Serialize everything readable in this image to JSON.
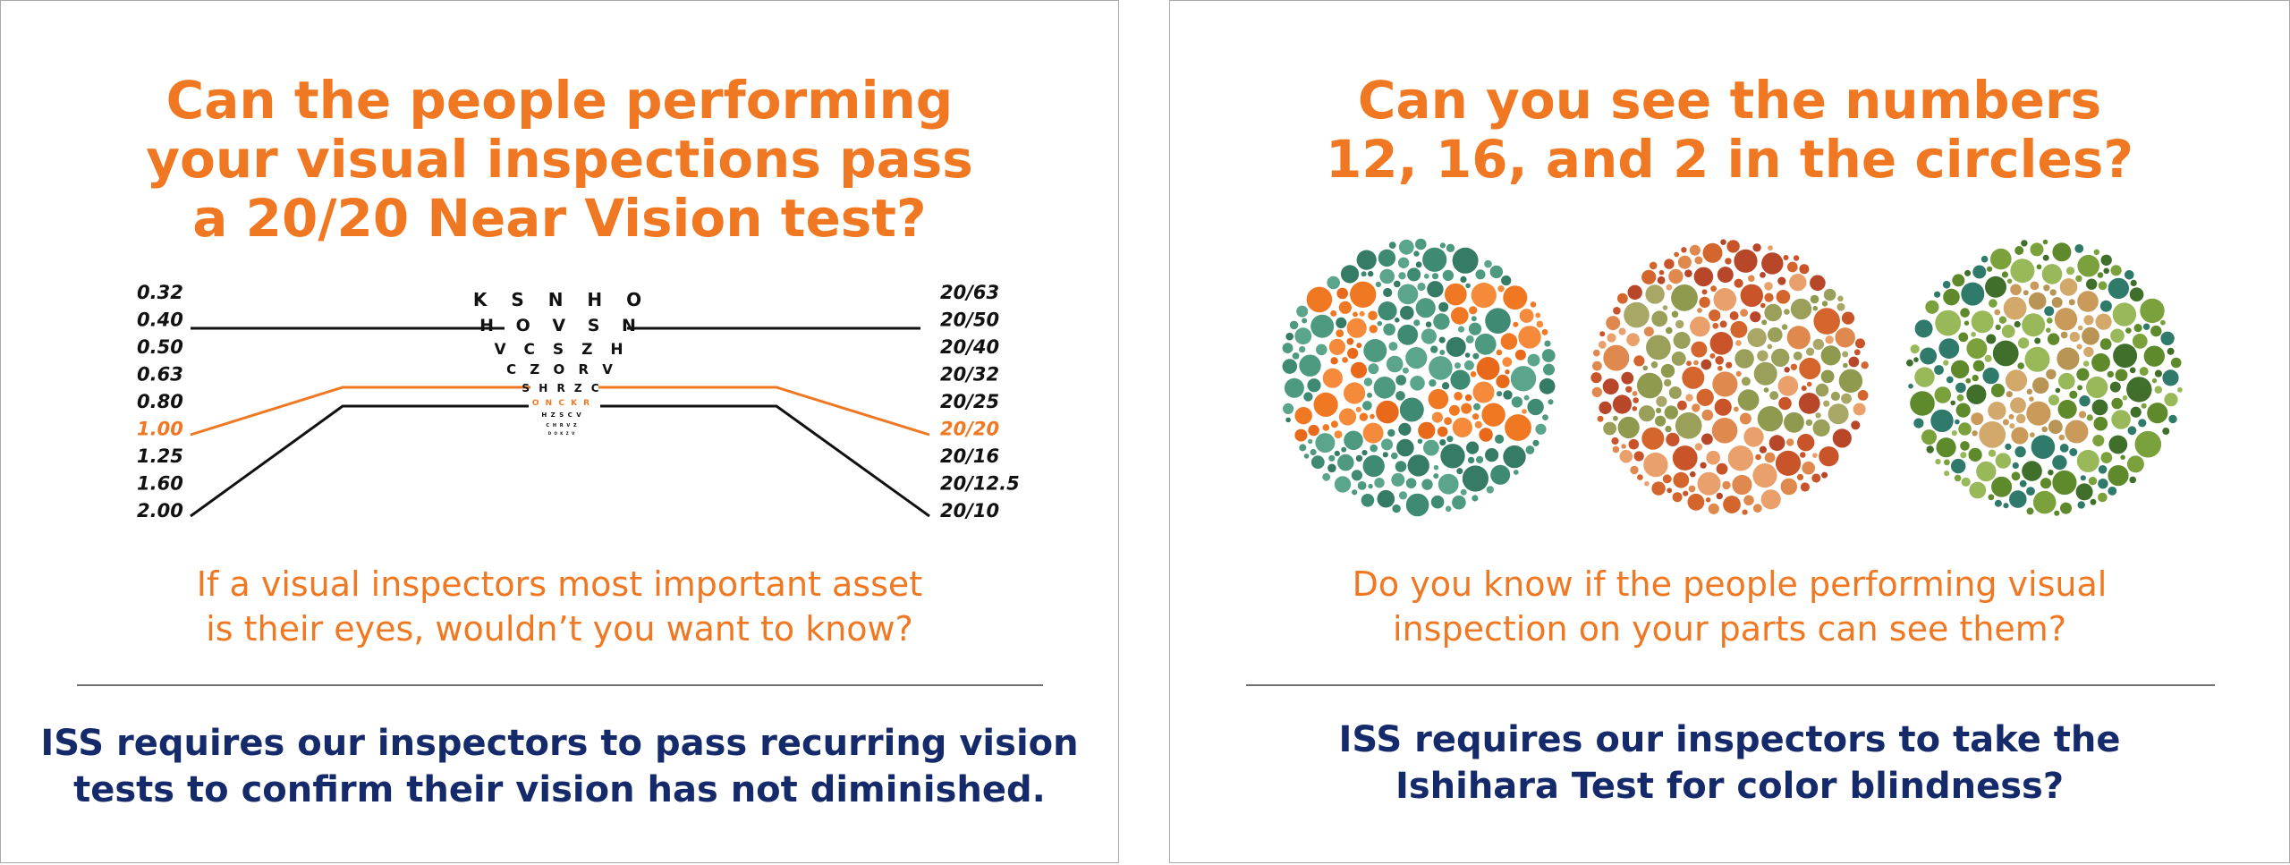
{
  "left": {
    "headline": [
      "Can the people performing",
      "your visual inspections pass",
      "a 20/20 Near Vision test?"
    ],
    "chart": {
      "decimal": [
        "0.32",
        "0.40",
        "0.50",
        "0.63",
        "0.80",
        "1.00",
        "1.25",
        "1.60",
        "2.00"
      ],
      "snellen": [
        "20/63",
        "20/50",
        "20/40",
        "20/32",
        "20/25",
        "20/20",
        "20/16",
        "20/12.5",
        "20/10"
      ],
      "letter_rows": [
        "K S N H O",
        "H O V S N",
        "V C S Z H",
        "C Z O R V",
        "S H R Z C",
        "O N C K R",
        "H Z S C V",
        "C H R V Z",
        "D O K Z V"
      ],
      "highlight_row": 5,
      "highlight_color": "#f07822",
      "text_color": "#111111"
    },
    "subline": [
      "If a visual inspectors most important asset",
      "is their eyes, wouldn’t you want to know?"
    ],
    "footer": [
      "ISS requires our inspectors to pass recurring vision",
      "tests to confirm their vision has not diminished."
    ]
  },
  "right": {
    "headline": [
      "Can you see the numbers",
      "12, 16, and 2 in the circles?"
    ],
    "plates": [
      {
        "number": "12",
        "background": [
          "#3f8a73",
          "#4d9a80",
          "#357b66",
          "#5aa58b"
        ],
        "figure": [
          "#f07822",
          "#f58a3a",
          "#e8691a"
        ]
      },
      {
        "number": "16",
        "background": [
          "#d4652c",
          "#e0894e",
          "#c9542a",
          "#e9a06a",
          "#b8472a"
        ],
        "figure": [
          "#9aa05a",
          "#8f9a4f",
          "#a8a765"
        ]
      },
      {
        "number": "2",
        "background": [
          "#5f8a2c",
          "#7ba13d",
          "#3f6f2a",
          "#98b85a",
          "#2f7a6a"
        ],
        "figure": [
          "#c99a5a",
          "#b89455",
          "#d2a86b"
        ]
      }
    ],
    "subline": [
      "Do you know if the people performing visual",
      "inspection on your parts can see them?"
    ],
    "footer": [
      "ISS requires our inspectors to take the",
      "Ishihara Test for color blindness?"
    ]
  }
}
